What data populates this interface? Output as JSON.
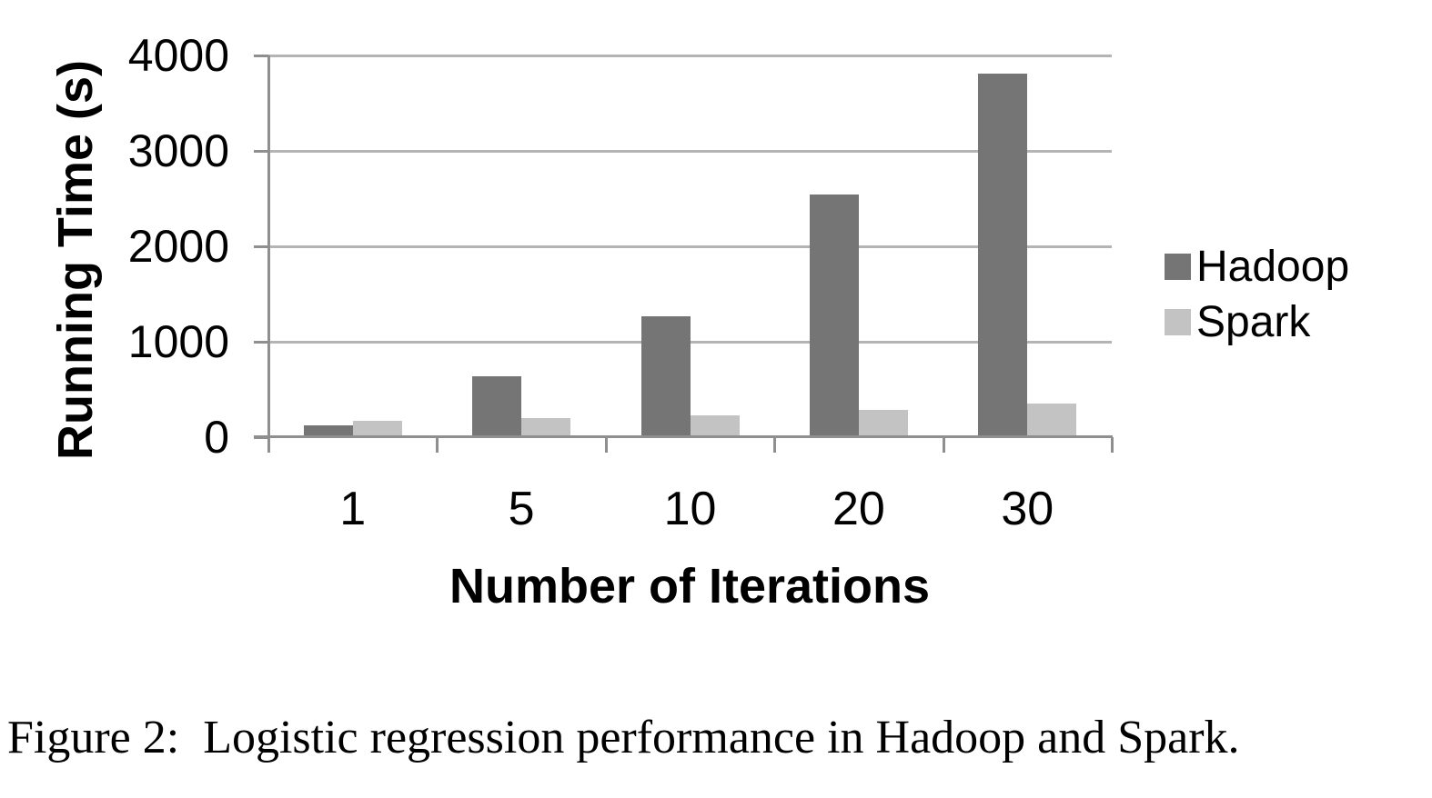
{
  "figure": {
    "caption": "Figure 2:  Logistic regression performance in Hadoop and Spark."
  },
  "chart_data": {
    "type": "bar",
    "title": "",
    "xlabel": "Number of Iterations",
    "ylabel": "Running Time (s)",
    "categories": [
      "1",
      "5",
      "10",
      "20",
      "30"
    ],
    "series": [
      {
        "name": "Hadoop",
        "color": "#757575",
        "values": [
          127,
          635,
          1270,
          2540,
          3810
        ]
      },
      {
        "name": "Spark",
        "color": "#c3c3c3",
        "values": [
          174,
          198,
          228,
          288,
          348
        ]
      }
    ],
    "ylim": [
      0,
      4000
    ],
    "yticks": [
      0,
      1000,
      2000,
      3000,
      4000
    ],
    "grid": true,
    "legend_position": "right"
  },
  "colors": {
    "grid": "#b4b4b4",
    "axis": "#8f8f8f",
    "text": "#000000",
    "background": "#ffffff"
  }
}
